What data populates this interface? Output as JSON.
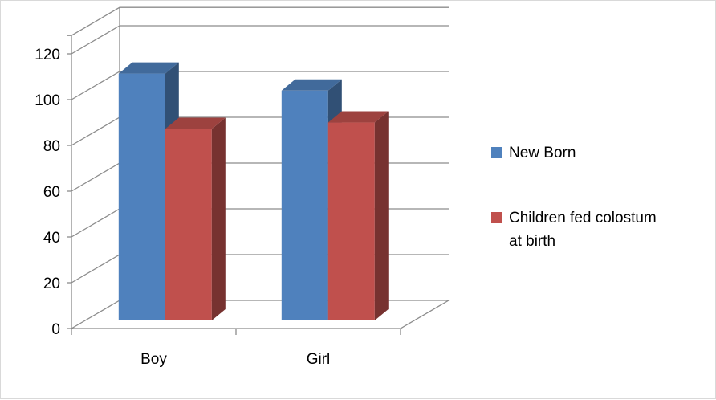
{
  "chart_data": {
    "type": "bar",
    "categories": [
      "Boy",
      "Girl"
    ],
    "series": [
      {
        "name": "New Born",
        "values": [
          116,
          108
        ],
        "color": "#4F81BD"
      },
      {
        "name": "Children fed colostum at birth",
        "values": [
          90,
          93
        ],
        "color": "#C0504D"
      }
    ],
    "ylim": [
      0,
      120
    ],
    "yticks": [
      "0",
      "20",
      "40",
      "60",
      "80",
      "100",
      "120"
    ],
    "grid": true,
    "legend_position": "right",
    "style": "3d-clustered-column"
  }
}
